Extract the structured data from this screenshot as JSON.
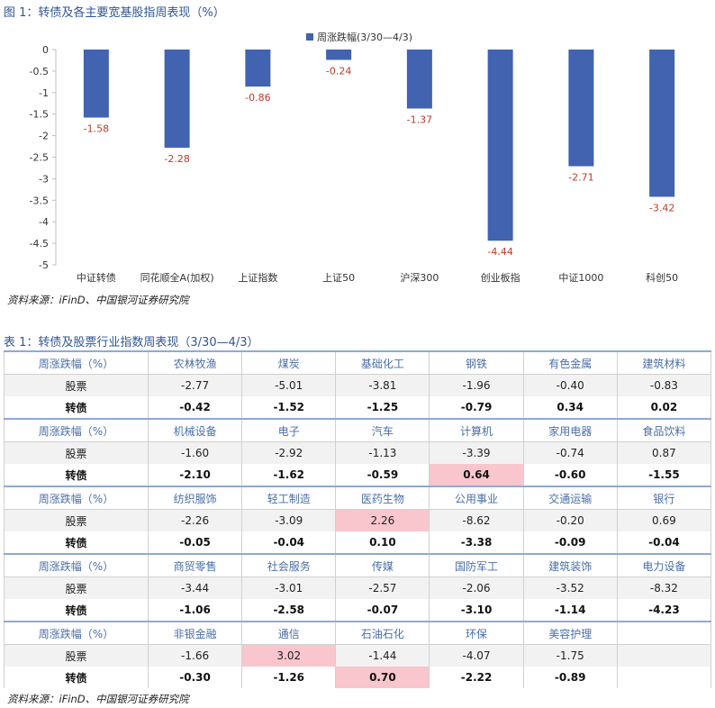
{
  "chart_data": {
    "type": "bar",
    "title": "图 1：转债及各主要宽基股指周表现（%）",
    "categories": [
      "中证转债",
      "同花顺全A(加权)",
      "上证指数",
      "上证50",
      "沪深300",
      "创业板指",
      "中证1000",
      "科创50"
    ],
    "series": [
      {
        "name": "周涨跌幅(3/30—4/3)",
        "color": "#4163b0",
        "values": [
          -1.58,
          -2.28,
          -0.86,
          -0.24,
          -1.37,
          -4.44,
          -2.71,
          -3.42
        ]
      }
    ],
    "label_color": "#c0392b",
    "ylim": [
      -5,
      0
    ],
    "yticks": [
      0,
      -0.5,
      -1,
      -1.5,
      -2,
      -2.5,
      -3,
      -3.5,
      -4,
      -4.5,
      -5
    ],
    "source": "资料来源：iFinD、中国银河证券研究院"
  },
  "table": {
    "title": "表 1：转债及股票行业指数周表现（3/30—4/3）",
    "header_label": "周涨跌幅（%）",
    "stock_label": "股票",
    "cb_label": "转债",
    "highlight_color": "#f9c6cd",
    "blocks": [
      {
        "industries": [
          "农林牧渔",
          "煤炭",
          "基础化工",
          "钢铁",
          "有色金属",
          "建筑材料"
        ],
        "stock": [
          "-2.77",
          "-5.01",
          "-3.81",
          "-1.96",
          "-0.40",
          "-0.83"
        ],
        "cb": [
          "-0.42",
          "-1.52",
          "-1.25",
          "-0.79",
          "0.34",
          "0.02"
        ],
        "highlight": {
          "stock": [],
          "cb": []
        }
      },
      {
        "industries": [
          "机械设备",
          "电子",
          "汽车",
          "计算机",
          "家用电器",
          "食品饮料"
        ],
        "stock": [
          "-1.60",
          "-2.92",
          "-1.13",
          "-3.39",
          "-0.74",
          "0.87"
        ],
        "cb": [
          "-2.10",
          "-1.62",
          "-0.59",
          "0.64",
          "-0.60",
          "-1.55"
        ],
        "highlight": {
          "stock": [],
          "cb": [
            3
          ]
        }
      },
      {
        "industries": [
          "纺织服饰",
          "轻工制造",
          "医药生物",
          "公用事业",
          "交通运输",
          "银行"
        ],
        "stock": [
          "-2.26",
          "-3.09",
          "2.26",
          "-8.62",
          "-0.20",
          "0.69"
        ],
        "cb": [
          "-0.05",
          "-0.04",
          "0.10",
          "-3.38",
          "-0.09",
          "-0.04"
        ],
        "highlight": {
          "stock": [
            2
          ],
          "cb": []
        }
      },
      {
        "industries": [
          "商贸零售",
          "社会服务",
          "传媒",
          "国防军工",
          "建筑装饰",
          "电力设备"
        ],
        "stock": [
          "-3.44",
          "-3.01",
          "-2.57",
          "-2.06",
          "-3.52",
          "-8.32"
        ],
        "cb": [
          "-1.06",
          "-2.58",
          "-0.07",
          "-3.10",
          "-1.14",
          "-4.23"
        ],
        "highlight": {
          "stock": [],
          "cb": []
        }
      },
      {
        "industries": [
          "非银金融",
          "通信",
          "石油石化",
          "环保",
          "美容护理"
        ],
        "stock": [
          "-1.66",
          "3.02",
          "-1.44",
          "-4.07",
          "-1.75"
        ],
        "cb": [
          "-0.30",
          "-1.26",
          "0.70",
          "-2.22",
          "-0.89"
        ],
        "highlight": {
          "stock": [
            1
          ],
          "cb": [
            2
          ]
        }
      }
    ],
    "source": "资料来源：iFinD、中国银河证券研究院"
  }
}
